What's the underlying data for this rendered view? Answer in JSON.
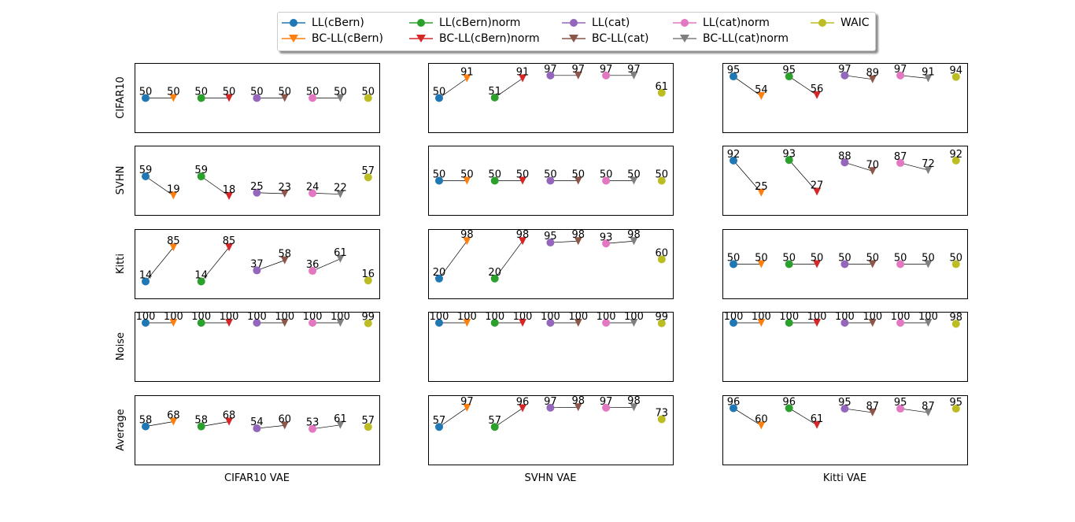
{
  "legend": [
    {
      "label": "LL(cBern)",
      "color": "#1f77b4",
      "marker": "circle"
    },
    {
      "label": "BC-LL(cBern)",
      "color": "#ff7f0e",
      "marker": "triangle-down"
    },
    {
      "label": "LL(cBern)norm",
      "color": "#2ca02c",
      "marker": "circle"
    },
    {
      "label": "BC-LL(cBern)norm",
      "color": "#d62728",
      "marker": "triangle-down"
    },
    {
      "label": "LL(cat)",
      "color": "#9467bd",
      "marker": "circle"
    },
    {
      "label": "BC-LL(cat)",
      "color": "#8c564b",
      "marker": "triangle-down"
    },
    {
      "label": "LL(cat)norm",
      "color": "#e377c2",
      "marker": "circle"
    },
    {
      "label": "BC-LL(cat)norm",
      "color": "#7f7f7f",
      "marker": "triangle-down"
    },
    {
      "label": "WAIC",
      "color": "#bcbd22",
      "marker": "circle"
    }
  ],
  "chart_data": {
    "type": "scatter",
    "rows": [
      "CIFAR10",
      "SVHN",
      "Kitti",
      "Noise",
      "Average"
    ],
    "columns": [
      "CIFAR10 VAE",
      "SVHN VAE",
      "Kitti VAE"
    ],
    "series_order": [
      "LL(cBern)",
      "BC-LL(cBern)",
      "LL(cBern)norm",
      "BC-LL(cBern)norm",
      "LL(cat)",
      "BC-LL(cat)",
      "LL(cat)norm",
      "BC-LL(cat)norm",
      "WAIC"
    ],
    "connected_pairs": [
      [
        0,
        1
      ],
      [
        2,
        3
      ],
      [
        4,
        5
      ],
      [
        6,
        7
      ]
    ],
    "ylim": [
      0,
      100
    ],
    "grid": false,
    "legend_position": "top-center",
    "values": [
      [
        [
          50,
          50,
          50,
          50,
          50,
          50,
          50,
          50,
          50
        ],
        [
          50,
          91,
          51,
          91,
          97,
          97,
          97,
          97,
          61
        ],
        [
          95,
          54,
          95,
          56,
          97,
          89,
          97,
          91,
          94
        ]
      ],
      [
        [
          59,
          19,
          59,
          18,
          25,
          23,
          24,
          22,
          57
        ],
        [
          50,
          50,
          50,
          50,
          50,
          50,
          50,
          50,
          50
        ],
        [
          92,
          25,
          93,
          27,
          88,
          70,
          87,
          72,
          92
        ]
      ],
      [
        [
          14,
          85,
          14,
          85,
          37,
          58,
          36,
          61,
          16
        ],
        [
          20,
          98,
          20,
          98,
          95,
          98,
          93,
          98,
          60
        ],
        [
          50,
          50,
          50,
          50,
          50,
          50,
          50,
          50,
          50
        ]
      ],
      [
        [
          100,
          100,
          100,
          100,
          100,
          100,
          100,
          100,
          99
        ],
        [
          100,
          100,
          100,
          100,
          100,
          100,
          100,
          100,
          99
        ],
        [
          100,
          100,
          100,
          100,
          100,
          100,
          100,
          100,
          98
        ]
      ],
      [
        [
          58,
          68,
          58,
          68,
          54,
          60,
          53,
          61,
          57
        ],
        [
          57,
          97,
          57,
          96,
          97,
          98,
          97,
          98,
          73
        ],
        [
          96,
          60,
          96,
          61,
          95,
          87,
          95,
          87,
          95
        ]
      ]
    ]
  }
}
